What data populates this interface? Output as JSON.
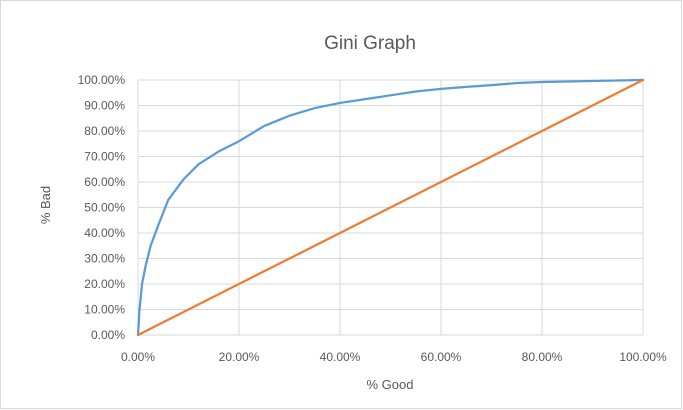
{
  "chart_data": {
    "type": "line",
    "title": "Gini Graph",
    "xlabel": "% Good",
    "ylabel": "% Bad",
    "xlim": [
      0,
      100
    ],
    "ylim": [
      0,
      100
    ],
    "grid": "vertical and horizontal major gridlines",
    "legend": "none",
    "x_ticks": [
      "0.00%",
      "20.00%",
      "40.00%",
      "60.00%",
      "80.00%",
      "100.00%"
    ],
    "y_ticks": [
      "0.00%",
      "10.00%",
      "20.00%",
      "30.00%",
      "40.00%",
      "50.00%",
      "60.00%",
      "70.00%",
      "80.00%",
      "90.00%",
      "100.00%"
    ],
    "series": [
      {
        "color": "#5b9bd5",
        "points": [
          [
            0,
            0
          ],
          [
            0.3,
            10
          ],
          [
            0.8,
            20
          ],
          [
            1.5,
            27
          ],
          [
            2.5,
            35
          ],
          [
            4,
            43
          ],
          [
            6,
            53
          ],
          [
            9,
            61
          ],
          [
            12,
            67
          ],
          [
            16,
            72
          ],
          [
            20,
            76
          ],
          [
            25,
            82
          ],
          [
            30,
            86
          ],
          [
            35,
            89
          ],
          [
            40,
            91
          ],
          [
            45,
            92.5
          ],
          [
            50,
            94
          ],
          [
            55,
            95.5
          ],
          [
            60,
            96.5
          ],
          [
            65,
            97.3
          ],
          [
            70,
            98
          ],
          [
            75,
            98.8
          ],
          [
            80,
            99.2
          ],
          [
            90,
            99.6
          ],
          [
            100,
            100
          ]
        ]
      },
      {
        "color": "#ed7d31",
        "points": [
          [
            0,
            0
          ],
          [
            100,
            100
          ]
        ]
      }
    ]
  },
  "colors": {
    "grid": "#d9d9d9",
    "text": "#595959"
  }
}
